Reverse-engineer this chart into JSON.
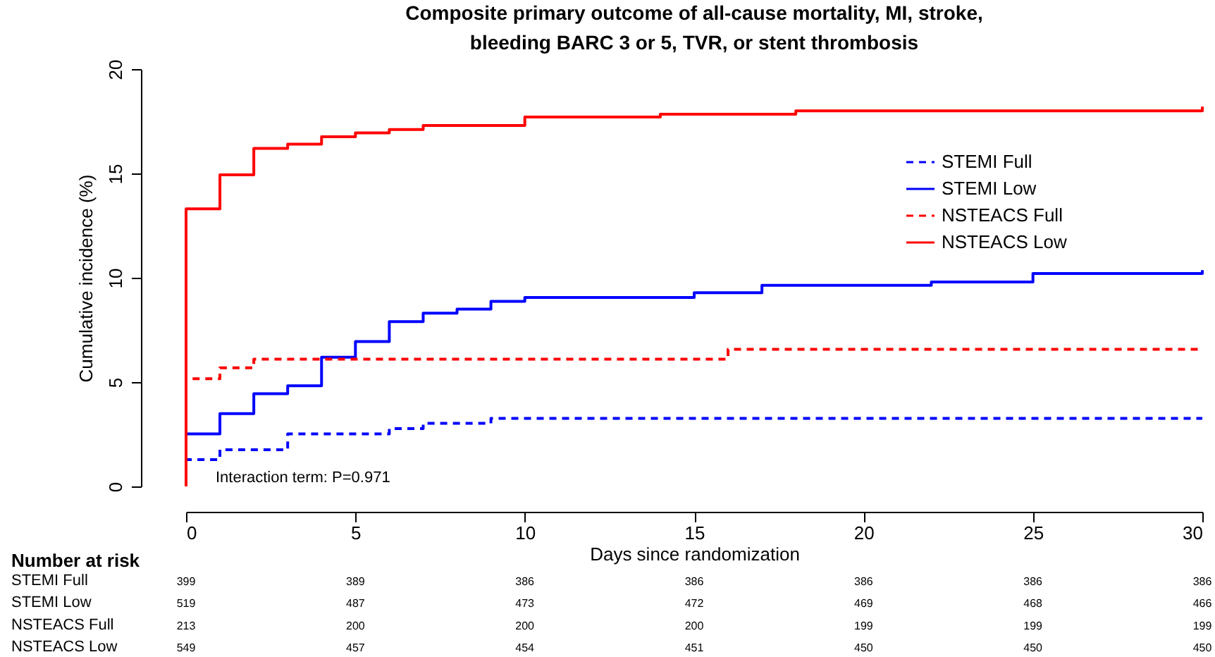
{
  "chart_data": {
    "type": "step",
    "title": "Composite primary outcome of all-cause mortality, MI, stroke, bleeding BARC 3 or 5, TVR, or stent thrombosis",
    "xlabel": "Days since randomization",
    "ylabel": "Cumulative incidence (%)",
    "xlim": [
      0,
      30
    ],
    "xticks": [
      0,
      5,
      10,
      15,
      20,
      25,
      30
    ],
    "ylim": [
      0,
      20
    ],
    "yticks": [
      0,
      5,
      10,
      15,
      20
    ],
    "grid": false,
    "legend": "top right",
    "marker": "none",
    "series": [
      {
        "name": "STEMI Full",
        "color": "#0000ff",
        "line_style": "dashed",
        "x": [
          0,
          0,
          1,
          3,
          6,
          7,
          9,
          30
        ],
        "values": [
          0,
          1.28,
          1.76,
          2.52,
          2.77,
          3.02,
          3.26,
          3.26
        ]
      },
      {
        "name": "STEMI Low",
        "color": "#0000ff",
        "line_style": "solid",
        "x": [
          0,
          0,
          1,
          2,
          3,
          4,
          5,
          6,
          7,
          8,
          9,
          10,
          15,
          17,
          22,
          25,
          30,
          30
        ],
        "values": [
          0,
          2.52,
          3.49,
          4.44,
          4.82,
          6.19,
          6.94,
          7.9,
          8.3,
          8.5,
          8.87,
          9.05,
          9.28,
          9.64,
          9.8,
          10.2,
          10.2,
          10.36
        ]
      },
      {
        "name": "NSTEACS Full",
        "color": "#ff0000",
        "line_style": "dashed",
        "x": [
          0,
          0,
          1,
          2,
          16,
          30
        ],
        "values": [
          0,
          5.16,
          5.68,
          6.1,
          6.57,
          6.57
        ]
      },
      {
        "name": "NSTEACS Low",
        "color": "#ff0000",
        "line_style": "solid",
        "x": [
          0,
          0,
          1,
          2,
          3,
          4,
          5,
          6,
          7,
          10,
          14,
          18,
          30,
          30
        ],
        "values": [
          0,
          13.3,
          14.93,
          16.2,
          16.4,
          16.76,
          16.94,
          17.1,
          17.3,
          17.7,
          17.84,
          18.0,
          18.0,
          18.2
        ]
      }
    ],
    "annotations": [
      "Interaction term: P=0.971",
      "Number at risk",
      "STEMI Full",
      "399",
      "389",
      "386",
      "386",
      "386",
      "386",
      "386",
      "STEMI Low",
      "519",
      "487",
      "473",
      "472",
      "469",
      "468",
      "466",
      "NSTEACS Full",
      "213",
      "200",
      "200",
      "200",
      "199",
      "199",
      "199",
      "NSTEACS Low",
      "549",
      "457",
      "454",
      "451",
      "450",
      "450",
      "450"
    ]
  }
}
